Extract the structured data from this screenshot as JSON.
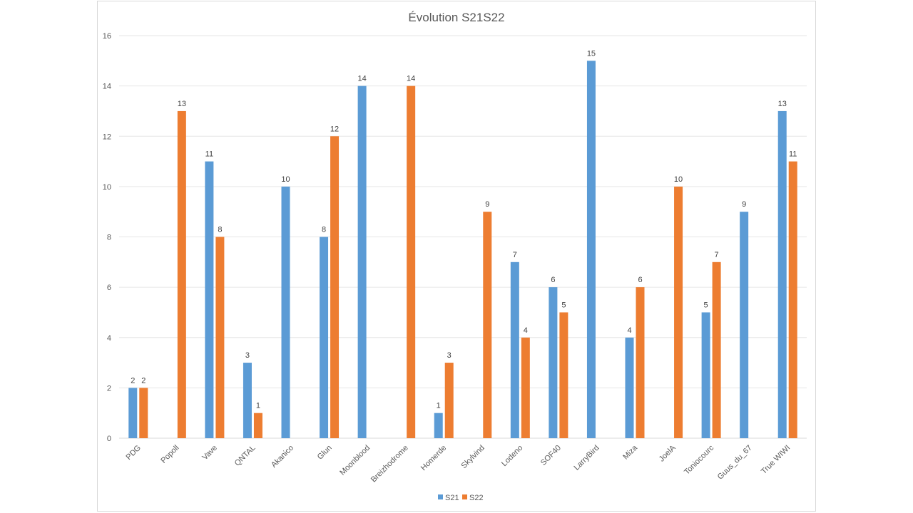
{
  "chart_data": {
    "type": "bar",
    "title": "Évolution S21S22",
    "xlabel": "",
    "ylabel": "",
    "ylim": [
      0,
      16
    ],
    "yticks": [
      0,
      2,
      4,
      6,
      8,
      10,
      12,
      14,
      16
    ],
    "grid": true,
    "legend_position": "bottom",
    "categories": [
      "PDG",
      "Popoll",
      "Vave",
      "QNTAL",
      "Akanico",
      "Glun",
      "Moonblood",
      "Breizhodrome",
      "Homerde",
      "Skylvind",
      "Lodeno",
      "SOF40",
      "LarryBird",
      "Miza",
      "JoelA",
      "Toniocourc",
      "Guus_du_67",
      "True WIWI"
    ],
    "series": [
      {
        "name": "S21",
        "color": "#5b9bd5",
        "values": [
          2,
          null,
          11,
          3,
          10,
          8,
          14,
          null,
          1,
          null,
          7,
          6,
          15,
          4,
          null,
          5,
          9,
          13
        ]
      },
      {
        "name": "S22",
        "color": "#ed7d31",
        "values": [
          2,
          13,
          8,
          1,
          null,
          12,
          null,
          14,
          3,
          9,
          4,
          5,
          null,
          6,
          10,
          7,
          null,
          11
        ]
      }
    ]
  }
}
